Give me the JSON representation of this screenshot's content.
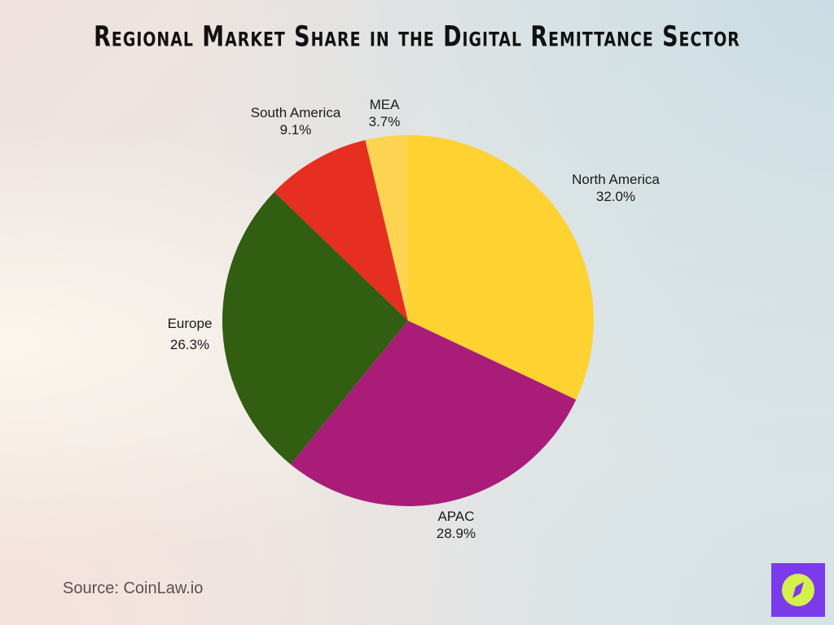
{
  "title": "Regional Market Share in the Digital Remittance Sector",
  "source": "Source: CoinLaw.io",
  "logo": {
    "icon": "compass-icon",
    "bg": "#7c3aed",
    "circle": "#d4f04a"
  },
  "labels": {
    "north_america": {
      "name": "North America",
      "value": "32.0%"
    },
    "apac": {
      "name": "APAC",
      "value": "28.9%"
    },
    "europe": {
      "name": "Europe",
      "value": "26.3%"
    },
    "south_america": {
      "name": "South America",
      "value": "9.1%"
    },
    "mea": {
      "name": "MEA",
      "value": "3.7%"
    }
  },
  "chart_data": {
    "type": "pie",
    "title": "Regional Market Share in the Digital Remittance Sector",
    "categories": [
      "North America",
      "APAC",
      "Europe",
      "South America",
      "MEA"
    ],
    "values": [
      32.0,
      28.9,
      26.3,
      9.1,
      3.7
    ],
    "unit": "%",
    "colors": [
      "#fdd231",
      "#a91d79",
      "#315e10",
      "#e62e21",
      "#fdd452"
    ],
    "start_angle": "12 o'clock",
    "direction": "clockwise",
    "legend": "none (direct labels)",
    "source": "CoinLaw.io"
  }
}
